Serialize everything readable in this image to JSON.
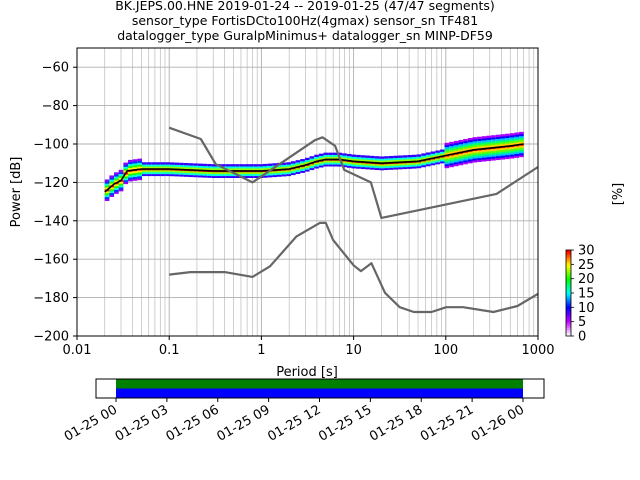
{
  "title_lines": [
    "BK.JEPS.00.HNE   2019-01-24 -- 2019-01-25  (47/47 segments)",
    "sensor_type FortisDCto100Hz(4gmax) sensor_sn TF481",
    "datalogger_type GuralpMinimus+ datalogger_sn MINP-DF59"
  ],
  "chart_data": [
    {
      "type": "heatmap",
      "xlabel": "Period [s]",
      "ylabel": "Power [dB]",
      "xscale": "log",
      "xlim": [
        0.01,
        1000
      ],
      "ylim": [
        -200,
        -50
      ],
      "xticks": [
        0.01,
        0.1,
        1,
        10,
        100,
        1000
      ],
      "xtick_labels": [
        "0.01",
        "0.1",
        "1",
        "10",
        "100",
        "1000"
      ],
      "yticks": [
        -60,
        -80,
        -100,
        -120,
        -140,
        -160,
        -180,
        -200
      ],
      "ytick_labels": [
        "−60",
        "−80",
        "−100",
        "−120",
        "−140",
        "−160",
        "−180",
        "−200"
      ],
      "grid": true,
      "colorbar": {
        "label": "[%]",
        "range": [
          0,
          30
        ],
        "ticks": [
          0,
          5,
          10,
          15,
          20,
          25,
          30
        ],
        "tick_labels": [
          "0",
          "5",
          "10",
          "15",
          "20",
          "25",
          "30"
        ],
        "colormap": [
          "#ffffff",
          "#bf00ff",
          "#0000ff",
          "#00ffff",
          "#00ff00",
          "#ffff00",
          "#ff0000"
        ]
      },
      "series": [
        {
          "name": "mode",
          "color": "#000000",
          "x": [
            0.02,
            0.025,
            0.03,
            0.035,
            0.05,
            0.1,
            0.3,
            1,
            2,
            3,
            4,
            5,
            7,
            10,
            20,
            50,
            100,
            200,
            500,
            700
          ],
          "y": [
            -125,
            -121,
            -119,
            -114,
            -113,
            -113,
            -114,
            -114,
            -113,
            -111,
            -109,
            -108,
            -108,
            -109,
            -110,
            -109,
            -106,
            -103,
            -101,
            -100
          ]
        },
        {
          "name": "noise model upper",
          "color": "#666666",
          "x": [
            0.1,
            0.22,
            0.32,
            0.8,
            3.8,
            4.6,
            6.3,
            7.9,
            15.4,
            20,
            354.8,
            1000
          ],
          "y": [
            -91.5,
            -97.4,
            -110.5,
            -120,
            -98,
            -96.5,
            -101,
            -113.5,
            -120,
            -138.5,
            -126,
            -112
          ]
        },
        {
          "name": "noise model lower",
          "color": "#666666",
          "x": [
            0.1,
            0.17,
            0.4,
            0.8,
            1.24,
            2.4,
            4.3,
            5,
            6,
            10,
            12,
            15.6,
            21.9,
            31.6,
            45,
            70,
            101,
            154,
            328,
            600,
            1000
          ],
          "y": [
            -168,
            -166.7,
            -166.7,
            -169.2,
            -163.7,
            -148.1,
            -141.1,
            -141.1,
            -150,
            -163.2,
            -166.2,
            -162.1,
            -177.5,
            -185,
            -187.5,
            -187.5,
            -185,
            -185,
            -187.5,
            -184.4,
            -178
          ]
        }
      ]
    },
    {
      "type": "bar",
      "xtick_labels": [
        "01-25 00",
        "01-25 03",
        "01-25 06",
        "01-25 09",
        "01-25 12",
        "01-25 15",
        "01-25 18",
        "01-25 21",
        "01-26 00"
      ],
      "bars": [
        {
          "color": "#008000",
          "start": "01-25 00",
          "end": "01-26 00"
        },
        {
          "color": "#0000ff",
          "start": "01-25 00",
          "end": "01-26 00"
        }
      ]
    }
  ]
}
